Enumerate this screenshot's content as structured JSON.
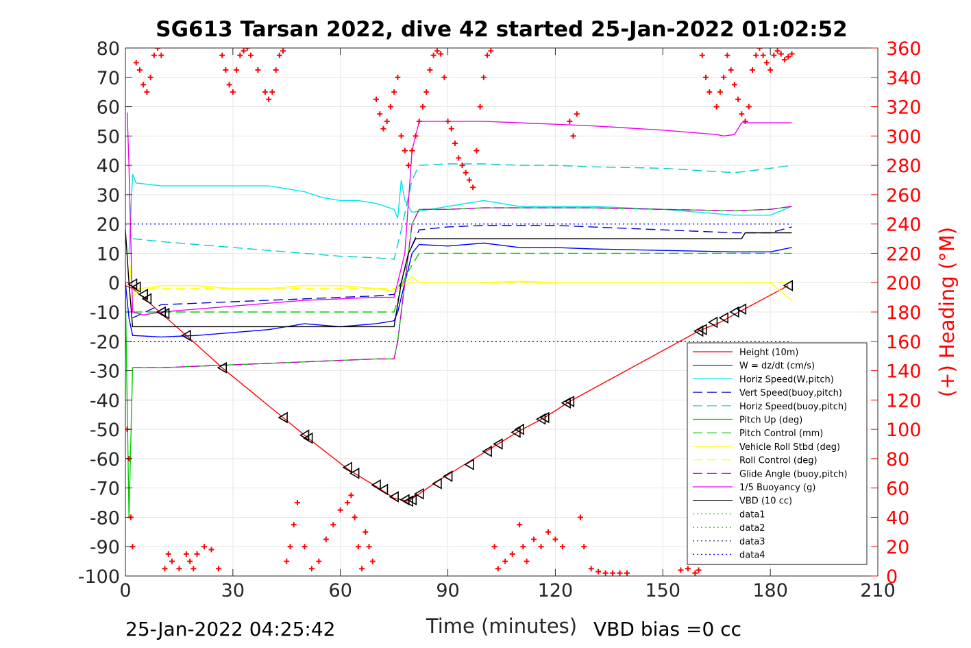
{
  "chart_data": {
    "type": "line",
    "title": "SG613 Tarsan 2022, dive 42 started 25-Jan-2022 01:02:52",
    "xlabel": "Time (minutes)",
    "ylabel": "",
    "ylabel_right": "(+) Heading (°M)",
    "xlim": [
      0,
      210
    ],
    "ylim": [
      -100,
      80
    ],
    "ylim_right": [
      0,
      360
    ],
    "x_ticks": [
      "0",
      "30",
      "60",
      "90",
      "120",
      "150",
      "180",
      "210"
    ],
    "y_ticks": [
      "80",
      "70",
      "60",
      "50",
      "40",
      "30",
      "20",
      "10",
      "0",
      "-10",
      "-20",
      "-30",
      "-40",
      "-50",
      "-60",
      "-70",
      "-80",
      "-90",
      "-100"
    ],
    "y_ticks_right": [
      "360",
      "340",
      "320",
      "300",
      "280",
      "260",
      "240",
      "220",
      "200",
      "180",
      "160",
      "140",
      "120",
      "100",
      "80",
      "60",
      "40",
      "20",
      "0"
    ],
    "grid": true,
    "legend_position": "bottom-right",
    "footer_left": "25-Jan-2022 04:25:42",
    "footer_right": "VBD bias =0 cc",
    "series": [
      {
        "name": "Height (10m)",
        "color": "#ff0000",
        "style": "solid",
        "x": [
          0,
          2,
          5,
          10,
          17,
          27,
          44,
          51,
          62,
          70,
          75,
          79,
          82,
          88,
          96,
          104,
          110,
          117,
          124,
          160,
          166,
          172,
          185
        ],
        "y": [
          -1,
          -2,
          -5,
          -10.5,
          -18,
          -29,
          -46,
          -53,
          -63.5,
          -69.5,
          -73.5,
          -74.5,
          -72,
          -67,
          -61,
          -55,
          -50.5,
          -46,
          -40.5,
          -16.5,
          -13.5,
          -9.5,
          -1
        ]
      },
      {
        "name": "W = dz/dt (cm/s)",
        "color": "#0000ff",
        "style": "solid",
        "x": [
          0,
          1,
          2,
          10,
          20,
          30,
          40,
          50,
          60,
          70,
          75,
          76,
          78,
          80,
          82,
          90,
          100,
          110,
          120,
          130,
          150,
          170,
          180,
          186
        ],
        "y": [
          0,
          -12,
          -18,
          -18.5,
          -18,
          -17,
          -16,
          -14,
          -15,
          -14,
          -13,
          -10,
          0,
          10,
          13,
          12.5,
          13.5,
          12,
          12,
          11.5,
          11,
          10.5,
          10.5,
          12
        ]
      },
      {
        "name": "Horiz Speed(W,pitch)",
        "color": "#00e5ee",
        "style": "solid",
        "x": [
          1,
          2,
          3,
          10,
          20,
          30,
          40,
          45,
          50,
          55,
          60,
          65,
          70,
          75,
          76,
          77,
          78,
          80,
          85,
          90,
          100,
          110,
          120,
          130,
          150,
          170,
          180,
          186
        ],
        "y": [
          10,
          37,
          34,
          33,
          33,
          33,
          33,
          32,
          31,
          29,
          28,
          28,
          27,
          25,
          22,
          35,
          28,
          24,
          25,
          26,
          28,
          26,
          26,
          26,
          25,
          23,
          23,
          26
        ]
      },
      {
        "name": "Vert Speed(buoy,pitch)",
        "color": "#0000cc",
        "style": "dash",
        "x": [
          2,
          10,
          20,
          30,
          40,
          50,
          60,
          70,
          75,
          77,
          79,
          82,
          90,
          100,
          110,
          120,
          130,
          150,
          170,
          180,
          186
        ],
        "y": [
          -12,
          -7.5,
          -7,
          -6.5,
          -6,
          -5.5,
          -5,
          -4.5,
          -4,
          0,
          10,
          18,
          19,
          19.5,
          19.5,
          19.5,
          19,
          18,
          17,
          17,
          19
        ]
      },
      {
        "name": "Horiz Speed(buoy,pitch)",
        "color": "#00cccc",
        "style": "dash",
        "x": [
          2,
          10,
          20,
          30,
          40,
          50,
          60,
          70,
          75,
          77,
          80,
          82,
          90,
          100,
          110,
          120,
          130,
          150,
          170,
          180,
          186
        ],
        "y": [
          15,
          14,
          13,
          12,
          11,
          10,
          9,
          8.5,
          8,
          18,
          35,
          40,
          40.5,
          40.5,
          40,
          40,
          39.5,
          39,
          37.5,
          39,
          40
        ]
      },
      {
        "name": "Pitch Up (deg)",
        "color": "#00cc00",
        "style": "solid",
        "x": [
          0,
          1,
          2,
          10,
          20,
          30,
          40,
          50,
          60,
          70,
          75,
          76,
          78,
          80,
          82,
          90,
          100,
          110,
          120,
          130,
          150,
          170,
          180,
          186
        ],
        "y": [
          -2,
          -80,
          -29,
          -29,
          -28.5,
          -28,
          -27.5,
          -27,
          -26.5,
          -26,
          -26,
          -20,
          0,
          20,
          25,
          25,
          25.5,
          25.5,
          25.5,
          25.5,
          25,
          24.5,
          25,
          26
        ]
      },
      {
        "name": "Pitch Control (mm)",
        "color": "#00cc00",
        "style": "dash",
        "x": [
          2,
          40,
          75,
          78,
          82,
          186
        ],
        "y": [
          -10,
          -10,
          -10,
          2,
          10,
          10
        ]
      },
      {
        "name": "Vehicle Roll Stbd (deg)",
        "color": "#ffff00",
        "style": "solid",
        "x": [
          1,
          2,
          4,
          10,
          20,
          30,
          40,
          50,
          60,
          70,
          75,
          78,
          80,
          82,
          90,
          100,
          110,
          120,
          130,
          150,
          160,
          170,
          180,
          186
        ],
        "y": [
          10,
          -5,
          -2,
          -1,
          -1,
          -2,
          -2,
          -1,
          -1,
          -2,
          -3,
          0,
          2,
          0,
          0,
          0,
          0.5,
          0,
          0,
          0,
          0,
          0,
          0,
          -6
        ]
      },
      {
        "name": "Roll Control (deg)",
        "color": "#ffff00",
        "style": "dash",
        "x": [
          2,
          40,
          75,
          80,
          82,
          186
        ],
        "y": [
          -2,
          -2,
          -2,
          0,
          0,
          0
        ]
      },
      {
        "name": "Glide Angle (buoy,pitch)",
        "color": "#cc00cc",
        "style": "dash",
        "x": [
          2,
          10,
          20,
          30,
          40,
          50,
          60,
          70,
          75,
          76,
          78,
          80,
          82,
          90,
          100,
          110,
          120,
          130,
          150,
          170,
          180,
          186
        ],
        "y": [
          -29,
          -29,
          -28.5,
          -28,
          -27.5,
          -27,
          -26.5,
          -26,
          -26,
          -20,
          0,
          20,
          25,
          25,
          25.5,
          25.5,
          25.5,
          25.5,
          25,
          24.5,
          25,
          26
        ]
      },
      {
        "name": "1/5 Buoyancy (g)",
        "color": "#ee00ee",
        "style": "solid",
        "x": [
          0.5,
          1,
          2,
          5,
          10,
          20,
          30,
          40,
          50,
          60,
          70,
          75,
          78,
          80,
          82,
          90,
          100,
          110,
          120,
          130,
          150,
          165,
          167,
          170,
          172,
          180,
          186
        ],
        "y": [
          58,
          40,
          -10,
          -11,
          -10,
          -9,
          -8,
          -7,
          -6,
          -5.5,
          -5,
          -5,
          10,
          45,
          55,
          55,
          55,
          54.5,
          54,
          53.5,
          52,
          50.5,
          50,
          50.5,
          54.5,
          54.5,
          54.5
        ]
      },
      {
        "name": "VBD (10 cc)",
        "color": "#000000",
        "style": "solid",
        "x": [
          0,
          1,
          2,
          75,
          77,
          79,
          81,
          172,
          173,
          186
        ],
        "y": [
          18,
          0,
          -15,
          -15,
          0,
          10,
          15,
          15,
          17,
          17
        ]
      },
      {
        "name": "data1",
        "color": "#00cc00",
        "style": "dot",
        "x": [],
        "y": []
      },
      {
        "name": "data2",
        "color": "#00cc00",
        "style": "dot",
        "x": [],
        "y": []
      },
      {
        "name": "data3",
        "color": "#000080",
        "style": "dot",
        "x": [
          0,
          186
        ],
        "y": [
          -20,
          -20
        ]
      },
      {
        "name": "data4",
        "color": "#0000ff",
        "style": "dot",
        "x": [
          0,
          186
        ],
        "y": [
          20,
          20
        ]
      }
    ],
    "heading_series": {
      "name": "(+) Heading (°M)",
      "color": "#ff0000",
      "marker": "+",
      "axis": "right",
      "x": [
        0.5,
        1,
        1.5,
        2,
        3,
        4,
        5,
        6,
        7,
        8,
        9,
        10,
        11,
        12,
        13,
        15,
        17,
        18,
        19,
        20,
        22,
        24,
        26,
        27,
        28,
        29,
        30,
        31,
        32,
        33,
        34,
        35,
        37,
        39,
        40,
        41,
        42,
        43,
        44,
        45,
        46,
        47,
        48,
        50,
        52,
        54,
        56,
        58,
        60,
        62,
        63,
        64,
        65,
        66,
        67,
        68,
        69,
        70,
        71,
        72,
        73,
        74,
        75,
        76,
        77,
        78,
        79,
        80,
        81,
        82,
        83,
        84,
        85,
        86,
        87,
        88,
        89,
        90,
        91,
        92,
        93,
        94,
        95,
        96,
        97,
        98,
        99,
        100,
        101,
        102,
        103,
        104,
        106,
        108,
        110,
        111,
        112,
        114,
        116,
        118,
        120,
        122,
        124,
        125,
        126,
        127,
        128,
        130,
        132,
        134,
        136,
        138,
        140,
        155,
        157,
        159,
        160,
        161,
        162,
        163,
        165,
        166,
        167,
        168,
        169,
        170,
        171,
        172,
        173,
        174,
        175,
        176,
        177,
        178,
        179,
        180,
        181,
        182,
        183,
        184,
        185,
        186
      ],
      "y": [
        100,
        80,
        40,
        20,
        350,
        345,
        335,
        330,
        340,
        355,
        360,
        355,
        5,
        15,
        10,
        5,
        15,
        10,
        5,
        15,
        20,
        18,
        5,
        355,
        345,
        335,
        330,
        345,
        355,
        358,
        360,
        355,
        345,
        330,
        325,
        330,
        345,
        355,
        358,
        10,
        20,
        35,
        50,
        20,
        5,
        10,
        25,
        35,
        45,
        50,
        55,
        40,
        20,
        5,
        30,
        20,
        10,
        325,
        315,
        305,
        310,
        320,
        330,
        340,
        300,
        290,
        280,
        290,
        300,
        310,
        320,
        330,
        345,
        355,
        358,
        356,
        340,
        310,
        305,
        295,
        285,
        280,
        275,
        270,
        265,
        290,
        320,
        340,
        355,
        358,
        20,
        5,
        10,
        15,
        35,
        20,
        10,
        25,
        20,
        30,
        25,
        20,
        310,
        300,
        315,
        40,
        20,
        5,
        3,
        2,
        2,
        2,
        2,
        4,
        5,
        2,
        4,
        355,
        340,
        330,
        320,
        330,
        340,
        355,
        345,
        335,
        325,
        315,
        310,
        320,
        345,
        355,
        360,
        355,
        350,
        345,
        355,
        358,
        356,
        352,
        354,
        356
      ]
    },
    "depth_markers": {
      "name": "depth markers",
      "marker": "triangle",
      "color": "#000000",
      "x": [
        2,
        3,
        5,
        6,
        10,
        11,
        17,
        27,
        44,
        50,
        51,
        62,
        64,
        70,
        72,
        75,
        78,
        79,
        80,
        82,
        87,
        90,
        96,
        101,
        104,
        109,
        110,
        116,
        117,
        123,
        124,
        160,
        161,
        164,
        167,
        170,
        172,
        185
      ],
      "y": [
        -0.5,
        -1.5,
        -4,
        -5.5,
        -10,
        -10.5,
        -18,
        -29,
        -46,
        -52,
        -53,
        -63,
        -65,
        -69,
        -70.5,
        -73,
        -74,
        -74.5,
        -74,
        -72,
        -68.5,
        -66,
        -62,
        -57.5,
        -55,
        -51,
        -50,
        -46.5,
        -46,
        -41,
        -40.5,
        -16.5,
        -16,
        -13.5,
        -12,
        -10,
        -9,
        -1
      ]
    }
  }
}
